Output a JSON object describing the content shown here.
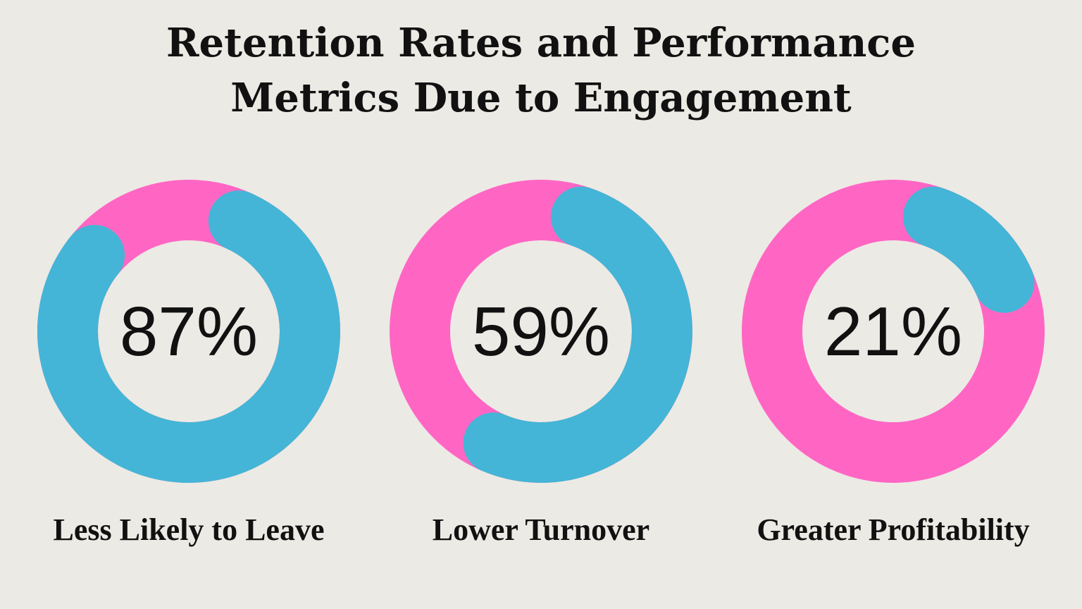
{
  "title": {
    "line1": "Retention Rates and Performance",
    "line2": "Metrics Due to Engagement"
  },
  "colors": {
    "background": "#ECEAE4",
    "filled": "#44B5D6",
    "remaining": "#FF66C4",
    "text": "#111111"
  },
  "chart_data": [
    {
      "type": "pie",
      "style": "donut",
      "value": 87,
      "value_label": "87%",
      "label": "Less Likely to Leave",
      "slices": [
        {
          "name": "filled",
          "value": 87
        },
        {
          "name": "remaining",
          "value": 13
        }
      ]
    },
    {
      "type": "pie",
      "style": "donut",
      "value": 59,
      "value_label": "59%",
      "label": "Lower Turnover",
      "slices": [
        {
          "name": "filled",
          "value": 59
        },
        {
          "name": "remaining",
          "value": 41
        }
      ]
    },
    {
      "type": "pie",
      "style": "donut",
      "value": 21,
      "value_label": "21%",
      "label": "Greater Profitability",
      "slices": [
        {
          "name": "filled",
          "value": 21
        },
        {
          "name": "remaining",
          "value": 79
        }
      ]
    }
  ]
}
